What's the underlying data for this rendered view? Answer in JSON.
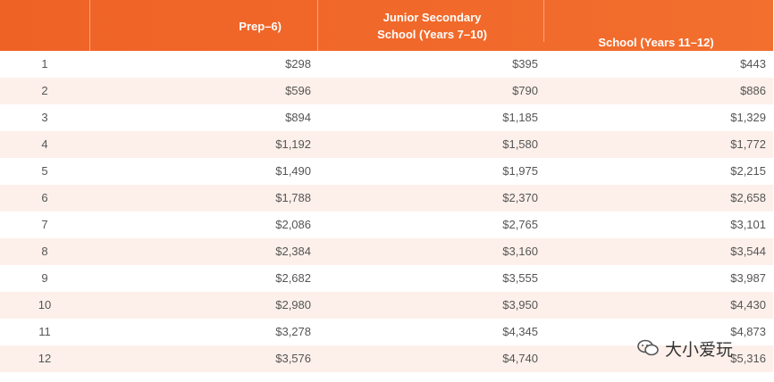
{
  "header": {
    "columns": [
      "Prep–6)",
      "Junior Secondary School (Years 7–10)",
      "School (Years 11–12)"
    ]
  },
  "table": {
    "rows": [
      [
        "1",
        "$298",
        "$395",
        "$443"
      ],
      [
        "2",
        "$596",
        "$790",
        "$886"
      ],
      [
        "3",
        "$894",
        "$1,185",
        "$1,329"
      ],
      [
        "4",
        "$1,192",
        "$1,580",
        "$1,772"
      ],
      [
        "5",
        "$1,490",
        "$1,975",
        "$2,215"
      ],
      [
        "6",
        "$1,788",
        "$2,370",
        "$2,658"
      ],
      [
        "7",
        "$2,086",
        "$2,765",
        "$3,101"
      ],
      [
        "8",
        "$2,384",
        "$3,160",
        "$3,544"
      ],
      [
        "9",
        "$2,682",
        "$3,555",
        "$3,987"
      ],
      [
        "10",
        "$2,980",
        "$3,950",
        "$4,430"
      ],
      [
        "11",
        "$3,278",
        "$4,345",
        "$4,873"
      ],
      [
        "12",
        "$3,576",
        "$4,740",
        "$5,316"
      ]
    ]
  },
  "watermark": "大小爱玩"
}
